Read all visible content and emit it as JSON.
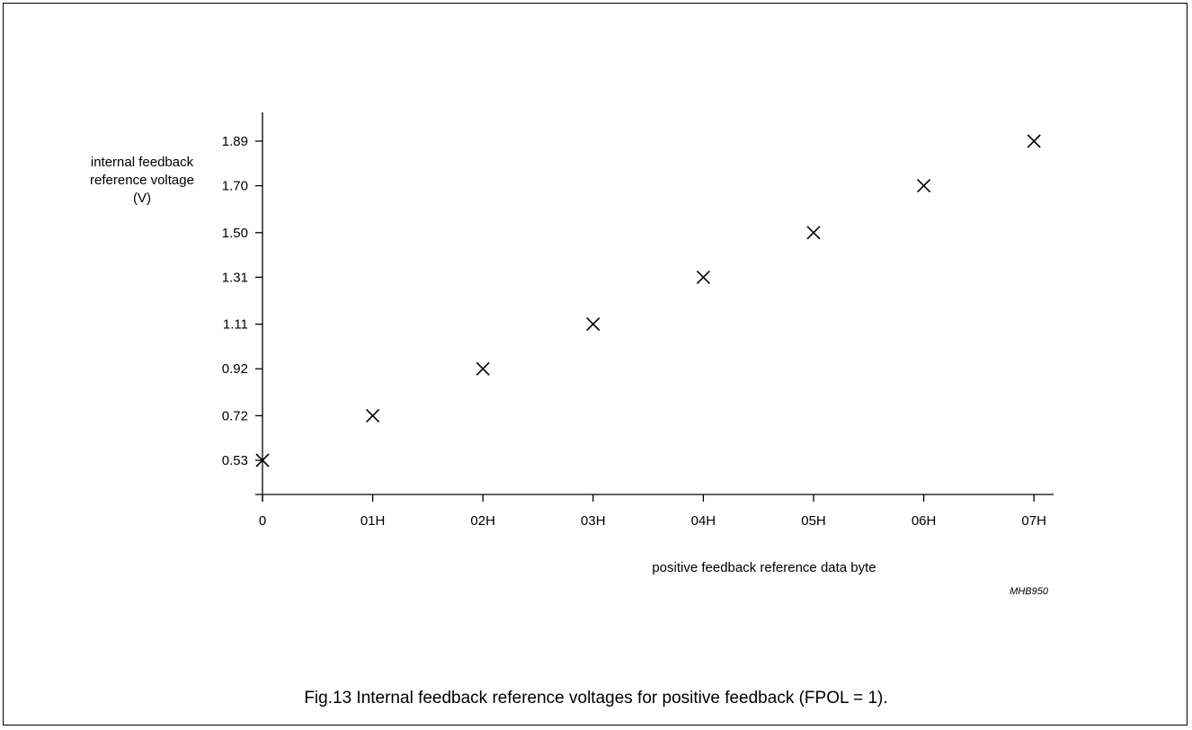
{
  "chart_data": {
    "type": "scatter",
    "marker": "x",
    "categories": [
      "0",
      "01H",
      "02H",
      "03H",
      "04H",
      "05H",
      "06H",
      "07H"
    ],
    "values": [
      0.53,
      0.72,
      0.92,
      1.11,
      1.31,
      1.5,
      1.7,
      1.89
    ],
    "yticks": [
      "0.53",
      "0.72",
      "0.92",
      "1.11",
      "1.31",
      "1.50",
      "1.70",
      "1.89"
    ],
    "ylabel_lines": [
      "internal feedback",
      "reference voltage",
      "(V)"
    ],
    "xlabel": "positive feedback reference data byte",
    "ylim": [
      0.53,
      1.89
    ],
    "grid": false,
    "colors": {
      "marker": "#000000",
      "axis": "#000000"
    }
  },
  "figure_code": "MHB950",
  "caption": "Fig.13  Internal feedback reference voltages for positive feedback (FPOL = 1)."
}
